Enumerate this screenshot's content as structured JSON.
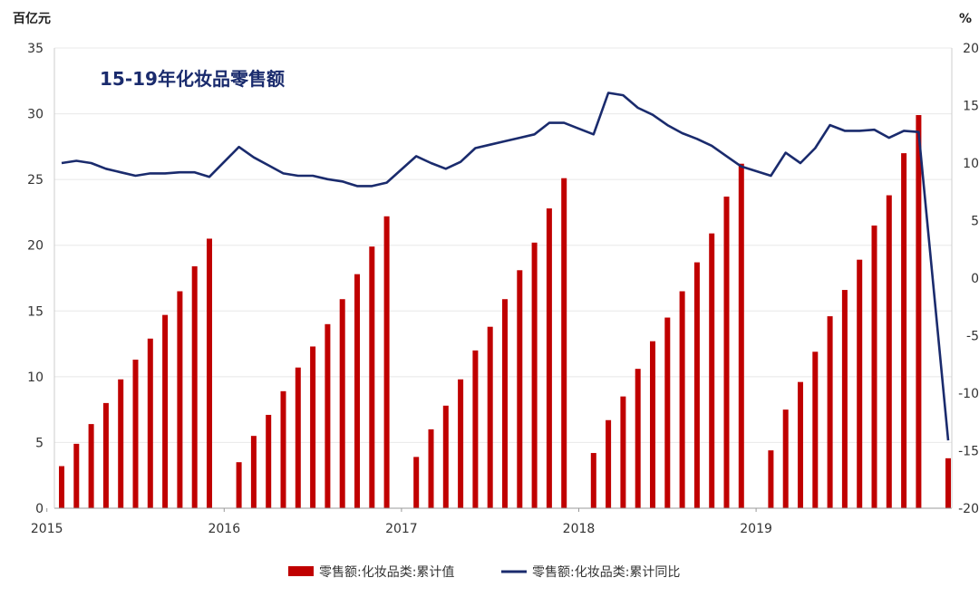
{
  "chart_data": {
    "type": "bar+line",
    "title": "15-19年化妆品零售额",
    "left_axis_unit": "百亿元",
    "right_axis_unit": "%",
    "y_left": {
      "range": [
        0,
        35
      ],
      "ticks": [
        0,
        5,
        10,
        15,
        20,
        25,
        30,
        35
      ]
    },
    "y_right": {
      "range": [
        -20,
        20
      ],
      "ticks": [
        -20,
        -15,
        -10,
        -5,
        0,
        5,
        10,
        15,
        20
      ]
    },
    "x_year_labels": [
      "2015",
      "2016",
      "2017",
      "2018",
      "2019"
    ],
    "colors": {
      "bar": "#c00000",
      "line": "#1a2b6d",
      "axis": "#999999",
      "grid": "#e8e8e8"
    },
    "series": [
      {
        "name": "零售额:化妆品类:累计值",
        "type": "bar",
        "axis": "left",
        "x": [
          "2015-02",
          "2015-03",
          "2015-04",
          "2015-05",
          "2015-06",
          "2015-07",
          "2015-08",
          "2015-09",
          "2015-10",
          "2015-11",
          "2015-12",
          "2016-02",
          "2016-03",
          "2016-04",
          "2016-05",
          "2016-06",
          "2016-07",
          "2016-08",
          "2016-09",
          "2016-10",
          "2016-11",
          "2016-12",
          "2017-02",
          "2017-03",
          "2017-04",
          "2017-05",
          "2017-06",
          "2017-07",
          "2017-08",
          "2017-09",
          "2017-10",
          "2017-11",
          "2017-12",
          "2018-02",
          "2018-03",
          "2018-04",
          "2018-05",
          "2018-06",
          "2018-07",
          "2018-08",
          "2018-09",
          "2018-10",
          "2018-11",
          "2018-12",
          "2019-02",
          "2019-03",
          "2019-04",
          "2019-05",
          "2019-06",
          "2019-07",
          "2019-08",
          "2019-09",
          "2019-10",
          "2019-11",
          "2019-12",
          "2020-02"
        ],
        "values": [
          3.2,
          4.9,
          6.4,
          8.0,
          9.8,
          11.3,
          12.9,
          14.7,
          16.5,
          18.4,
          20.5,
          3.5,
          5.5,
          7.1,
          8.9,
          10.7,
          12.3,
          14.0,
          15.9,
          17.8,
          19.9,
          22.2,
          3.9,
          6.0,
          7.8,
          9.8,
          12.0,
          13.8,
          15.9,
          18.1,
          20.2,
          22.8,
          25.1,
          4.2,
          6.7,
          8.5,
          10.6,
          12.7,
          14.5,
          16.5,
          18.7,
          20.9,
          23.7,
          26.2,
          4.4,
          7.5,
          9.6,
          11.9,
          14.6,
          16.6,
          18.9,
          21.5,
          23.8,
          27.0,
          29.9,
          3.8
        ]
      },
      {
        "name": "零售额:化妆品类:累计同比",
        "type": "line",
        "axis": "right",
        "x": [
          "2015-02",
          "2015-03",
          "2015-04",
          "2015-05",
          "2015-06",
          "2015-07",
          "2015-08",
          "2015-09",
          "2015-10",
          "2015-11",
          "2015-12",
          "2016-02",
          "2016-03",
          "2016-04",
          "2016-05",
          "2016-06",
          "2016-07",
          "2016-08",
          "2016-09",
          "2016-10",
          "2016-11",
          "2016-12",
          "2017-02",
          "2017-03",
          "2017-04",
          "2017-05",
          "2017-06",
          "2017-07",
          "2017-08",
          "2017-09",
          "2017-10",
          "2017-11",
          "2017-12",
          "2018-02",
          "2018-03",
          "2018-04",
          "2018-05",
          "2018-06",
          "2018-07",
          "2018-08",
          "2018-09",
          "2018-10",
          "2018-11",
          "2018-12",
          "2019-02",
          "2019-03",
          "2019-04",
          "2019-05",
          "2019-06",
          "2019-07",
          "2019-08",
          "2019-09",
          "2019-10",
          "2019-11",
          "2019-12",
          "2020-02"
        ],
        "values": [
          10.0,
          10.2,
          10.0,
          9.5,
          9.2,
          8.9,
          9.1,
          9.1,
          9.2,
          9.2,
          8.8,
          11.4,
          10.5,
          9.8,
          9.1,
          8.9,
          8.9,
          8.6,
          8.4,
          8.0,
          8.0,
          8.3,
          10.6,
          10.0,
          9.5,
          10.1,
          11.3,
          11.6,
          11.9,
          12.2,
          12.5,
          13.5,
          13.5,
          12.5,
          16.1,
          15.9,
          14.8,
          14.2,
          13.3,
          12.6,
          12.1,
          11.5,
          10.6,
          9.7,
          8.9,
          10.9,
          10.0,
          11.3,
          13.3,
          12.8,
          12.8,
          12.9,
          12.2,
          12.8,
          12.7,
          -14.1
        ]
      }
    ],
    "legend_position": "bottom",
    "grid": true
  }
}
